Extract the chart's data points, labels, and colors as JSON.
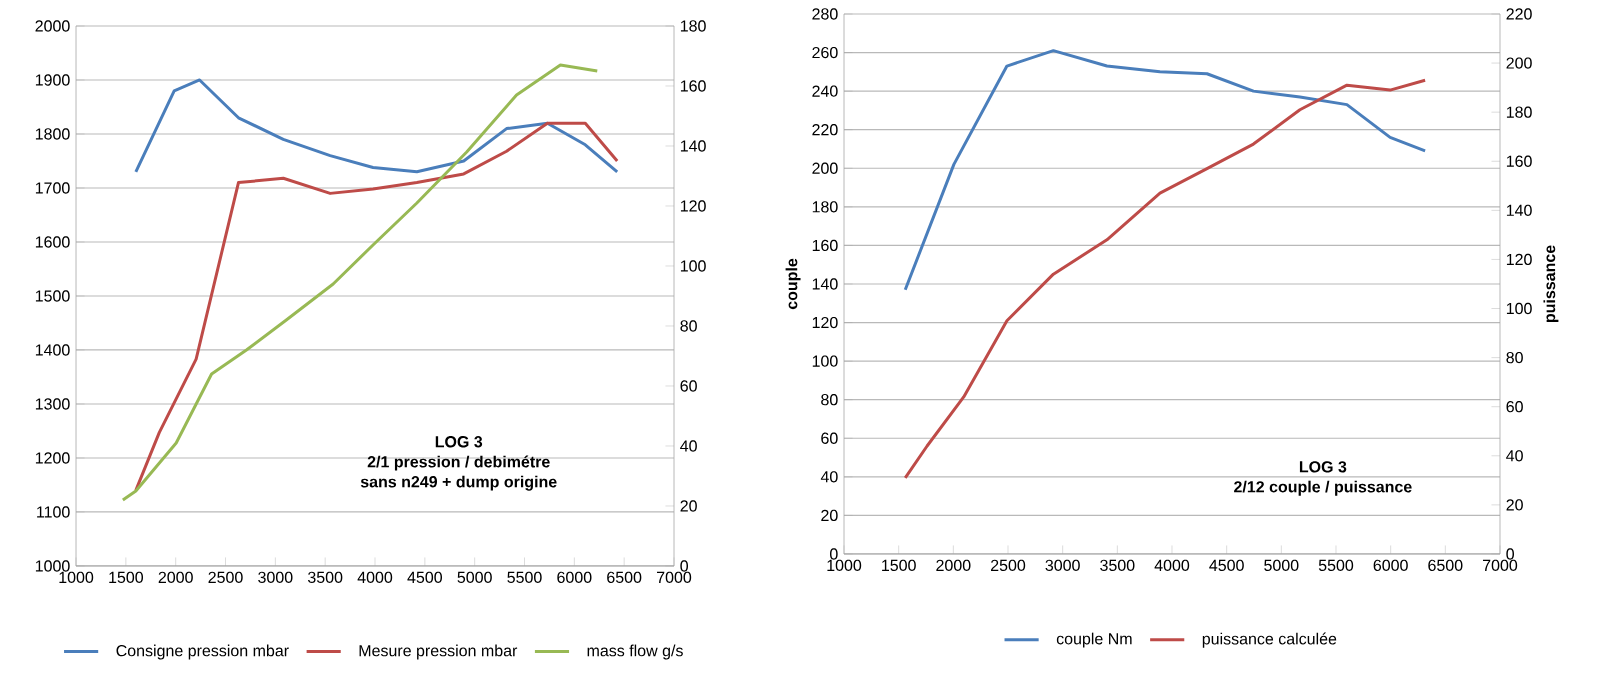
{
  "chart_data": [
    {
      "type": "line",
      "xlim": [
        1000,
        7000
      ],
      "xticks": [
        1000,
        1500,
        2000,
        2500,
        3000,
        3500,
        4000,
        4500,
        5000,
        5500,
        6000,
        6500,
        7000
      ],
      "ylim": [
        1000,
        2000
      ],
      "yticks": [
        1000,
        1100,
        1200,
        1300,
        1400,
        1500,
        1600,
        1700,
        1800,
        1900,
        2000
      ],
      "y2lim": [
        0,
        180
      ],
      "y2ticks": [
        0,
        20,
        40,
        60,
        80,
        100,
        120,
        140,
        160,
        180
      ],
      "grid": "y",
      "legend": "bottom",
      "annotations": [
        "LOG 3",
        "2/1  pression / debimétre",
        "sans n249 + dump origine"
      ],
      "series": [
        {
          "name": "Consigne pression mbar",
          "color": "#4a7ebb",
          "x": [
            1600,
            1985,
            2240,
            2630,
            3080,
            3550,
            3980,
            4420,
            4890,
            5320,
            5730,
            6110,
            6430
          ],
          "values": [
            1730,
            1880,
            1900,
            1830,
            1790,
            1760,
            1738,
            1730,
            1750,
            1810,
            1820,
            1780,
            1730
          ]
        },
        {
          "name": "Mesure  pression mbar",
          "color": "#be4b48",
          "x": [
            1600,
            1835,
            2205,
            2630,
            3080,
            3550,
            3980,
            4420,
            4890,
            5320,
            5730,
            6110,
            6430
          ],
          "values": [
            1140,
            1247,
            1383,
            1710,
            1718,
            1690,
            1698,
            1710,
            1726,
            1768,
            1820,
            1820,
            1750
          ]
        },
        {
          "name": "mass flow g/s",
          "color": "#98b954",
          "axis": "y2",
          "x": [
            1470,
            1600,
            2005,
            2360,
            2710,
            3110,
            3580,
            3980,
            4420,
            4920,
            5420,
            5860,
            6230
          ],
          "values": [
            22,
            25,
            41,
            64,
            72,
            82,
            94,
            107,
            121,
            138,
            157,
            167,
            165
          ]
        }
      ]
    },
    {
      "type": "line",
      "xlim": [
        1000,
        7000
      ],
      "xticks": [
        1000,
        1500,
        2000,
        2500,
        3000,
        3500,
        4000,
        4500,
        5000,
        5500,
        6000,
        6500,
        7000
      ],
      "ylim": [
        0,
        280
      ],
      "yticks": [
        0,
        20,
        40,
        60,
        80,
        100,
        120,
        140,
        160,
        180,
        200,
        220,
        240,
        260,
        280
      ],
      "y2lim": [
        0,
        220
      ],
      "y2ticks": [
        0,
        20,
        40,
        60,
        80,
        100,
        120,
        140,
        160,
        180,
        200,
        220
      ],
      "ylabel": "couple",
      "y2label": "puissance",
      "grid": "y",
      "legend": "bottom",
      "annotations": [
        "LOG 3",
        "2/12  couple / puissance"
      ],
      "series": [
        {
          "name": "couple Nm",
          "color": "#4a7ebb",
          "x": [
            1560,
            2005,
            2490,
            2915,
            3405,
            3890,
            4320,
            4745,
            5170,
            5600,
            5995,
            6315
          ],
          "values": [
            137,
            202,
            253,
            261,
            253,
            250,
            249,
            240,
            237,
            233,
            216,
            209
          ]
        },
        {
          "name": "puissance calculée",
          "color": "#be4b48",
          "axis": "y2",
          "x": [
            1560,
            1760,
            2095,
            2490,
            2915,
            3405,
            3890,
            4320,
            4745,
            5170,
            5600,
            5995,
            6315
          ],
          "values": [
            31,
            44,
            64,
            95,
            114,
            128,
            147,
            157,
            167,
            181,
            191,
            189,
            193
          ]
        }
      ]
    }
  ]
}
